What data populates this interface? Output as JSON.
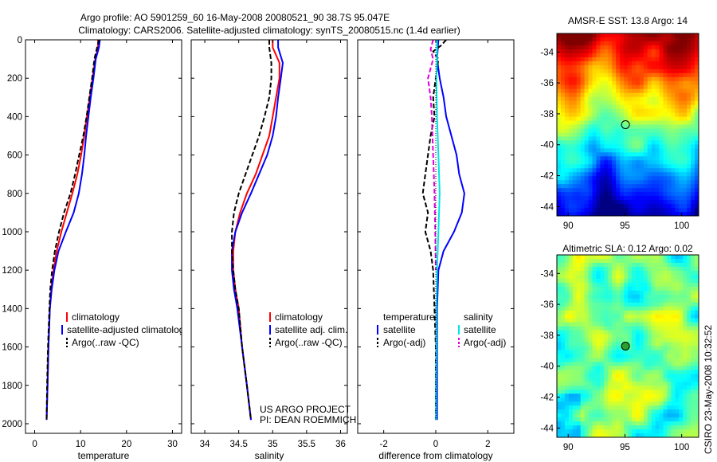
{
  "figure": {
    "title_line1": "Argo profile: AO 5901259_60 16-May-2008 20080521_90 38.7S 95.047E",
    "title_line2": "Climatology: CARS2006. Satellite-adjusted climatology: synTS_20080515.nc (1.4d earlier)",
    "side_label": "CSIRO 23-May-2008 10:32:52",
    "credit_line1": "US ARGO PROJECT",
    "credit_line2": "PI: DEAN ROEMMICH",
    "colors": {
      "climatology": "#ff0000",
      "satellite": "#0000ff",
      "argo": "#000000",
      "satellite_sal_diff": "#00e5e5",
      "argo_sal_diff": "#e000e0"
    }
  },
  "chart_data": [
    {
      "id": "temperature",
      "type": "line",
      "xlabel": "temperature",
      "ylabel": "",
      "xlim": [
        -2,
        32
      ],
      "ylim": [
        2050,
        0
      ],
      "xticks": [
        0,
        10,
        20,
        30
      ],
      "yticks": [
        0,
        200,
        400,
        600,
        800,
        1000,
        1200,
        1400,
        1600,
        1800,
        2000
      ],
      "legend": [
        "climatology",
        "satellite-adjusted climatology",
        "Argo(..raw -QC)"
      ],
      "series": [
        {
          "name": "climatology",
          "style": "solid",
          "color": "#ff0000",
          "points": [
            [
              13.8,
              0
            ],
            [
              13.8,
              40
            ],
            [
              13.2,
              100
            ],
            [
              12.6,
              200
            ],
            [
              12.0,
              300
            ],
            [
              11.4,
              400
            ],
            [
              10.8,
              500
            ],
            [
              10.1,
              600
            ],
            [
              9.3,
              700
            ],
            [
              8.2,
              800
            ],
            [
              7.0,
              900
            ],
            [
              5.8,
              1000
            ],
            [
              4.8,
              1100
            ],
            [
              4.1,
              1200
            ],
            [
              3.6,
              1300
            ],
            [
              3.3,
              1400
            ],
            [
              3.0,
              1600
            ],
            [
              2.8,
              1800
            ],
            [
              2.6,
              1980
            ]
          ]
        },
        {
          "name": "satellite-adjusted climatology",
          "style": "solid",
          "color": "#0000ff",
          "points": [
            [
              14.2,
              0
            ],
            [
              14.0,
              40
            ],
            [
              13.3,
              100
            ],
            [
              12.8,
              200
            ],
            [
              12.2,
              300
            ],
            [
              11.7,
              400
            ],
            [
              11.2,
              500
            ],
            [
              10.8,
              600
            ],
            [
              10.3,
              700
            ],
            [
              9.6,
              800
            ],
            [
              8.5,
              900
            ],
            [
              6.8,
              1000
            ],
            [
              5.2,
              1100
            ],
            [
              4.3,
              1200
            ],
            [
              3.7,
              1300
            ],
            [
              3.3,
              1400
            ],
            [
              3.0,
              1600
            ],
            [
              2.8,
              1800
            ],
            [
              2.6,
              1980
            ]
          ]
        },
        {
          "name": "Argo(..raw -QC)",
          "style": "dashed",
          "color": "#000000",
          "points": [
            [
              14.0,
              0
            ],
            [
              13.6,
              40
            ],
            [
              13.0,
              100
            ],
            [
              12.5,
              200
            ],
            [
              11.9,
              300
            ],
            [
              11.3,
              400
            ],
            [
              10.6,
              500
            ],
            [
              9.7,
              600
            ],
            [
              8.8,
              700
            ],
            [
              7.8,
              800
            ],
            [
              6.4,
              900
            ],
            [
              5.3,
              1000
            ],
            [
              4.4,
              1100
            ],
            [
              3.8,
              1200
            ],
            [
              3.4,
              1300
            ],
            [
              3.2,
              1400
            ],
            [
              2.9,
              1600
            ],
            [
              2.7,
              1800
            ],
            [
              2.6,
              1980
            ]
          ]
        }
      ]
    },
    {
      "id": "salinity",
      "type": "line",
      "xlabel": "salinity",
      "ylabel": "",
      "xlim": [
        33.8,
        36.1
      ],
      "ylim": [
        2050,
        0
      ],
      "xticks": [
        34,
        34.5,
        35,
        35.5,
        36
      ],
      "yticks": [
        0,
        200,
        400,
        600,
        800,
        1000,
        1200,
        1400,
        1600,
        1800,
        2000
      ],
      "legend": [
        "climatology",
        "satellite adj. clim.",
        "Argo(..raw -QC)"
      ],
      "series": [
        {
          "name": "climatology",
          "style": "solid",
          "color": "#ff0000",
          "points": [
            [
              35.0,
              0
            ],
            [
              35.0,
              40
            ],
            [
              35.1,
              120
            ],
            [
              35.1,
              200
            ],
            [
              35.05,
              300
            ],
            [
              35.0,
              400
            ],
            [
              34.95,
              500
            ],
            [
              34.85,
              600
            ],
            [
              34.75,
              700
            ],
            [
              34.62,
              800
            ],
            [
              34.52,
              900
            ],
            [
              34.45,
              1000
            ],
            [
              34.42,
              1100
            ],
            [
              34.42,
              1200
            ],
            [
              34.45,
              1300
            ],
            [
              34.5,
              1400
            ],
            [
              34.55,
              1600
            ],
            [
              34.62,
              1800
            ],
            [
              34.68,
              1980
            ]
          ]
        },
        {
          "name": "satellite adj. clim.",
          "style": "solid",
          "color": "#0000ff",
          "points": [
            [
              35.08,
              0
            ],
            [
              35.08,
              40
            ],
            [
              35.15,
              120
            ],
            [
              35.12,
              200
            ],
            [
              35.08,
              300
            ],
            [
              35.05,
              400
            ],
            [
              35.0,
              500
            ],
            [
              34.92,
              600
            ],
            [
              34.8,
              700
            ],
            [
              34.68,
              800
            ],
            [
              34.55,
              900
            ],
            [
              34.45,
              1000
            ],
            [
              34.4,
              1100
            ],
            [
              34.4,
              1200
            ],
            [
              34.43,
              1300
            ],
            [
              34.48,
              1400
            ],
            [
              34.55,
              1600
            ],
            [
              34.62,
              1800
            ],
            [
              34.68,
              1980
            ]
          ]
        },
        {
          "name": "Argo(..raw -QC)",
          "style": "dashed",
          "color": "#000000",
          "points": [
            [
              34.95,
              0
            ],
            [
              34.95,
              40
            ],
            [
              34.98,
              120
            ],
            [
              34.98,
              200
            ],
            [
              34.95,
              300
            ],
            [
              34.88,
              400
            ],
            [
              34.8,
              500
            ],
            [
              34.7,
              600
            ],
            [
              34.6,
              700
            ],
            [
              34.5,
              800
            ],
            [
              34.43,
              900
            ],
            [
              34.4,
              1000
            ],
            [
              34.4,
              1100
            ],
            [
              34.42,
              1200
            ],
            [
              34.45,
              1300
            ],
            [
              34.5,
              1400
            ],
            [
              34.55,
              1600
            ],
            [
              34.62,
              1800
            ],
            [
              34.68,
              1980
            ]
          ]
        }
      ]
    },
    {
      "id": "difference",
      "type": "line",
      "xlabel": "difference from climatology",
      "ylabel": "",
      "xlim": [
        -3,
        3
      ],
      "ylim": [
        2050,
        0
      ],
      "xticks": [
        -2,
        0,
        2
      ],
      "yticks": [
        0,
        200,
        400,
        600,
        800,
        1000,
        1200,
        1400,
        1600,
        1800,
        2000
      ],
      "legend_groups": [
        {
          "heading": "temperature",
          "items": [
            "satellite",
            "Argo(-adj)"
          ]
        },
        {
          "heading": "salinity",
          "items": [
            "satellite",
            "Argo(-adj)"
          ]
        }
      ],
      "series": [
        {
          "name": "temperature satellite",
          "style": "solid",
          "color": "#0000ff",
          "points": [
            [
              0.1,
              0
            ],
            [
              0.05,
              100
            ],
            [
              0.15,
              200
            ],
            [
              0.3,
              300
            ],
            [
              0.4,
              400
            ],
            [
              0.6,
              500
            ],
            [
              0.8,
              600
            ],
            [
              0.9,
              700
            ],
            [
              1.1,
              800
            ],
            [
              1.0,
              900
            ],
            [
              0.7,
              1000
            ],
            [
              0.3,
              1100
            ],
            [
              0.1,
              1200
            ],
            [
              0.05,
              1400
            ],
            [
              0.05,
              1600
            ],
            [
              0.05,
              1800
            ],
            [
              0.05,
              1980
            ]
          ]
        },
        {
          "name": "temperature Argo(-adj)",
          "style": "dashed",
          "color": "#000000",
          "points": [
            [
              0.4,
              0
            ],
            [
              0.2,
              30
            ],
            [
              -0.1,
              60
            ],
            [
              0.1,
              100
            ],
            [
              0.0,
              200
            ],
            [
              -0.1,
              300
            ],
            [
              -0.05,
              400
            ],
            [
              -0.2,
              500
            ],
            [
              -0.3,
              600
            ],
            [
              -0.4,
              700
            ],
            [
              -0.5,
              800
            ],
            [
              -0.3,
              900
            ],
            [
              -0.4,
              1000
            ],
            [
              -0.2,
              1100
            ],
            [
              -0.1,
              1200
            ],
            [
              -0.05,
              1400
            ],
            [
              0.0,
              1600
            ],
            [
              0.0,
              1800
            ],
            [
              0.0,
              1980
            ]
          ]
        },
        {
          "name": "salinity satellite",
          "style": "solid",
          "color": "#00e5e5",
          "points": [
            [
              0.05,
              0
            ],
            [
              0.05,
              100
            ],
            [
              0.02,
              200
            ],
            [
              0.05,
              400
            ],
            [
              0.1,
              600
            ],
            [
              0.15,
              800
            ],
            [
              0.1,
              1000
            ],
            [
              0.05,
              1200
            ],
            [
              0.02,
              1400
            ],
            [
              0.02,
              1600
            ],
            [
              0.01,
              1800
            ],
            [
              0.01,
              1980
            ]
          ]
        },
        {
          "name": "salinity Argo(-adj)",
          "style": "dashed",
          "color": "#e000e0",
          "points": [
            [
              -0.1,
              0
            ],
            [
              -0.2,
              50
            ],
            [
              -0.1,
              100
            ],
            [
              -0.3,
              200
            ],
            [
              -0.2,
              300
            ],
            [
              -0.15,
              400
            ],
            [
              -0.1,
              600
            ],
            [
              -0.05,
              800
            ],
            [
              -0.02,
              1000
            ],
            [
              0.0,
              1200
            ]
          ]
        },
        {
          "name": "zero",
          "style": "dotted",
          "color": "#000000",
          "points": [
            [
              0,
              0
            ],
            [
              0,
              1980
            ]
          ]
        }
      ]
    },
    {
      "id": "sst_map",
      "type": "heatmap",
      "title": "AMSR-E SST: 13.8 Argo: 14",
      "xlim": [
        89,
        101.5
      ],
      "ylim": [
        -44.6,
        -32.8
      ],
      "xticks": [
        90,
        95,
        100
      ],
      "yticks": [
        -34,
        -36,
        -38,
        -40,
        -42,
        -44
      ],
      "marker": {
        "x": 95.047,
        "y": -38.7
      }
    },
    {
      "id": "sla_map",
      "type": "heatmap",
      "title": "Altimetric SLA: 0.12 Argo: 0.02",
      "xlim": [
        89,
        101.5
      ],
      "ylim": [
        -44.6,
        -32.8
      ],
      "xticks": [
        90,
        95,
        100
      ],
      "yticks": [
        -34,
        -36,
        -38,
        -40,
        -42,
        -44
      ],
      "marker": {
        "x": 95.047,
        "y": -38.7
      }
    }
  ]
}
